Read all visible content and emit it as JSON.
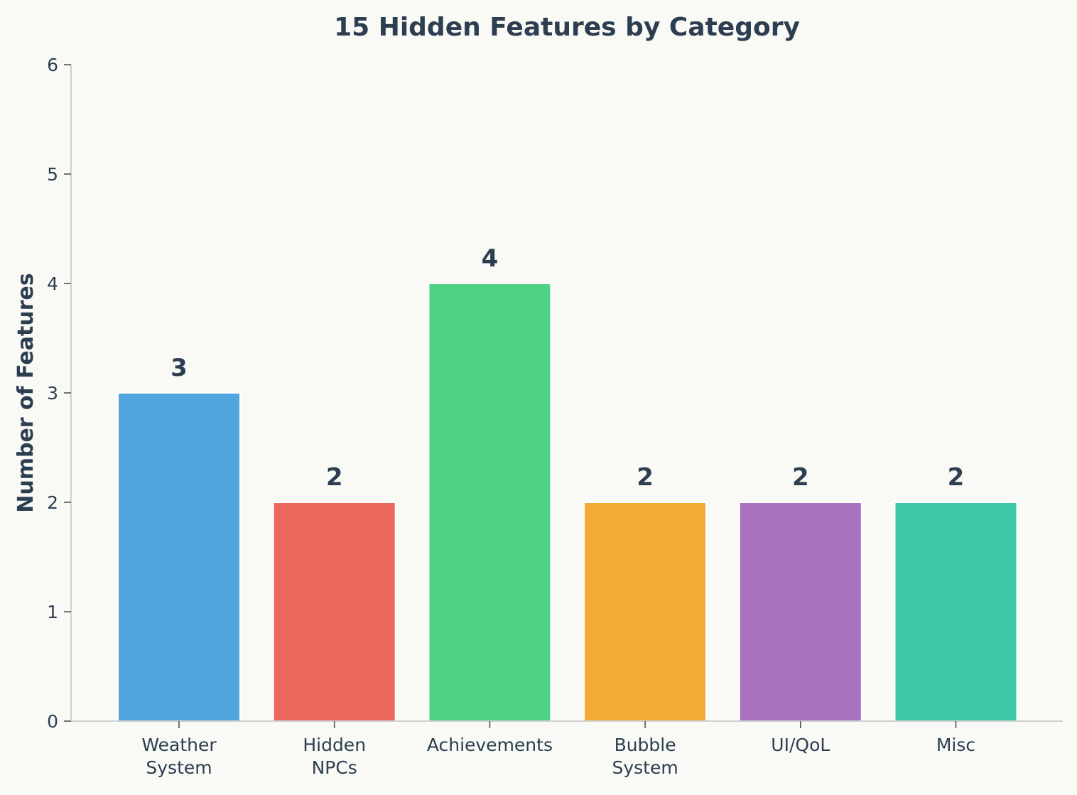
{
  "chart_data": {
    "type": "bar",
    "title": "15 Hidden Features by Category",
    "xlabel": "",
    "ylabel": "Number of Features",
    "categories": [
      [
        "Weather",
        "System"
      ],
      [
        "Hidden",
        "NPCs"
      ],
      [
        "Achievements"
      ],
      [
        "Bubble",
        "System"
      ],
      [
        "UI/QoL"
      ],
      [
        "Misc"
      ]
    ],
    "values": [
      3,
      2,
      4,
      2,
      2,
      2
    ],
    "data_labels": [
      "3",
      "2",
      "4",
      "2",
      "2",
      "2"
    ],
    "colors": [
      "#52a6df",
      "#eb675c",
      "#4fd286",
      "#f4aa37",
      "#aa71bf",
      "#3ec6a9"
    ],
    "ylim": [
      0,
      6
    ],
    "yticks": [
      0,
      1,
      2,
      3,
      4,
      5,
      6
    ],
    "grid": false,
    "legend": "none"
  }
}
